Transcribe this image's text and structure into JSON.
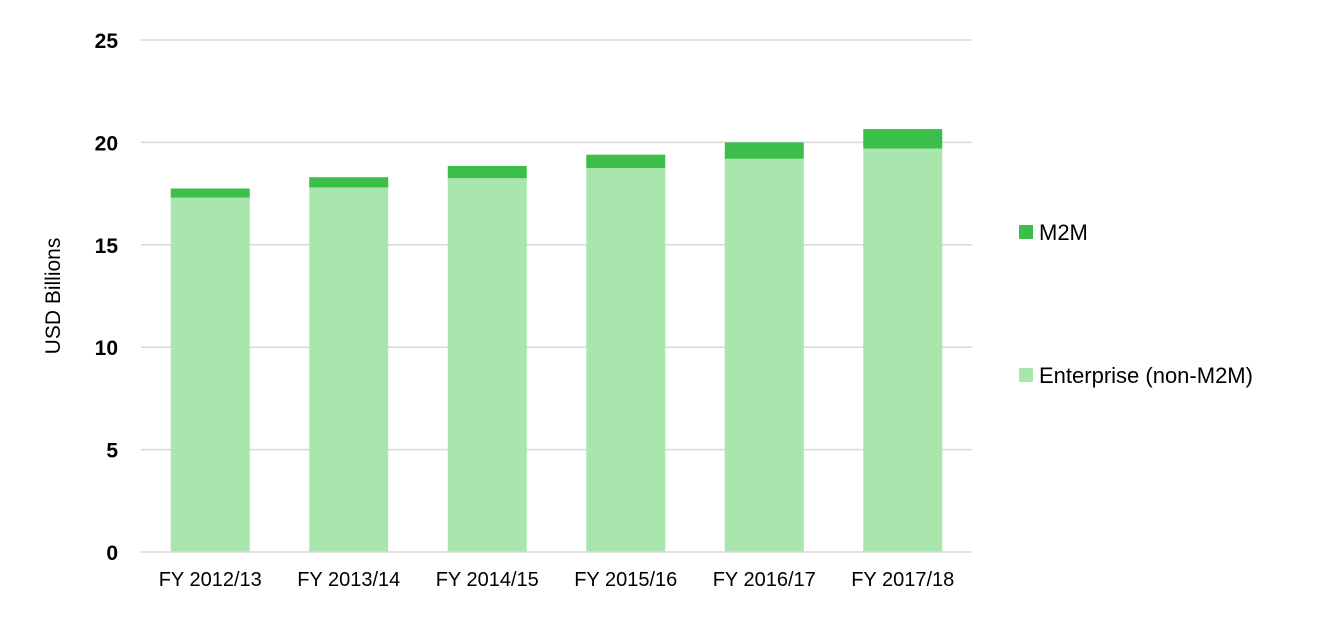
{
  "chart_data": {
    "type": "bar",
    "stacked": true,
    "categories": [
      "FY 2012/13",
      "FY 2013/14",
      "FY 2014/15",
      "FY 2015/16",
      "FY 2016/17",
      "FY 2017/18"
    ],
    "series": [
      {
        "name": "Enterprise (non-M2M)",
        "color": "#a8e6ad",
        "values": [
          17.3,
          17.8,
          18.25,
          18.75,
          19.2,
          19.7
        ]
      },
      {
        "name": "M2M",
        "color": "#3cbf4a",
        "values": [
          0.45,
          0.5,
          0.6,
          0.65,
          0.8,
          0.95
        ]
      }
    ],
    "xlabel": "",
    "ylabel": "USD Billions",
    "ylim": [
      0,
      25
    ],
    "yticks": [
      0,
      5,
      10,
      15,
      20,
      25
    ],
    "grid": true,
    "legend_position": "right"
  }
}
